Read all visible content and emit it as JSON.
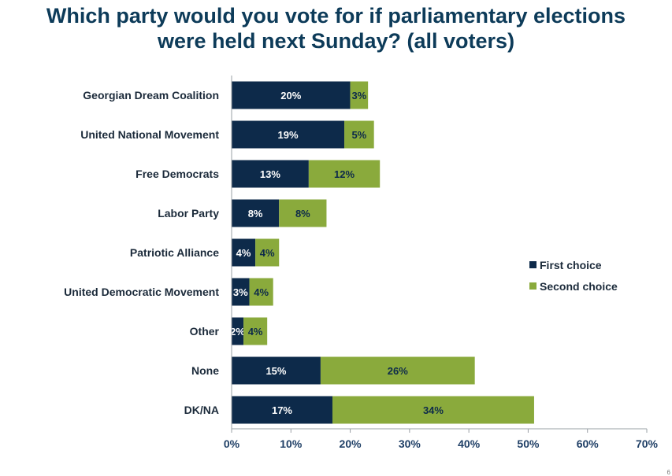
{
  "header": {
    "title_line1": "Which party would you vote for if parliamentary elections",
    "title_line2": "were held next Sunday? (all voters)"
  },
  "page_number": "6",
  "colors": {
    "first_choice": "#0d2a4a",
    "second_choice": "#8aaa3c",
    "first_label_text": "#ffffff",
    "second_label_text": "#0d2a4a",
    "axis": "#9aa0a6",
    "title": "#0d3b59"
  },
  "chart_data": {
    "type": "bar",
    "orientation": "horizontal",
    "stacked": true,
    "categories": [
      "Georgian Dream Coalition",
      "United National Movement",
      "Free Democrats",
      "Labor Party",
      "Patriotic Alliance",
      "United Democratic Movement",
      "Other",
      "None",
      "DK/NA"
    ],
    "series": [
      {
        "name": "First choice",
        "values": [
          20,
          19,
          13,
          8,
          4,
          3,
          2,
          15,
          17
        ]
      },
      {
        "name": "Second choice",
        "values": [
          3,
          5,
          12,
          8,
          4,
          4,
          4,
          26,
          34
        ]
      }
    ],
    "data_labels": [
      [
        "20%",
        "19%",
        "13%",
        "8%",
        "4%",
        "3%",
        "2%",
        "15%",
        "17%"
      ],
      [
        "3%",
        "5%",
        "12%",
        "8%",
        "4%",
        "4%",
        "4%",
        "26%",
        "34%"
      ]
    ],
    "xlim": [
      0,
      70
    ],
    "xticks": [
      0,
      10,
      20,
      30,
      40,
      50,
      60,
      70
    ],
    "xtick_labels": [
      "0%",
      "10%",
      "20%",
      "30%",
      "40%",
      "50%",
      "60%",
      "70%"
    ],
    "grid": false,
    "legend_position": "right"
  }
}
